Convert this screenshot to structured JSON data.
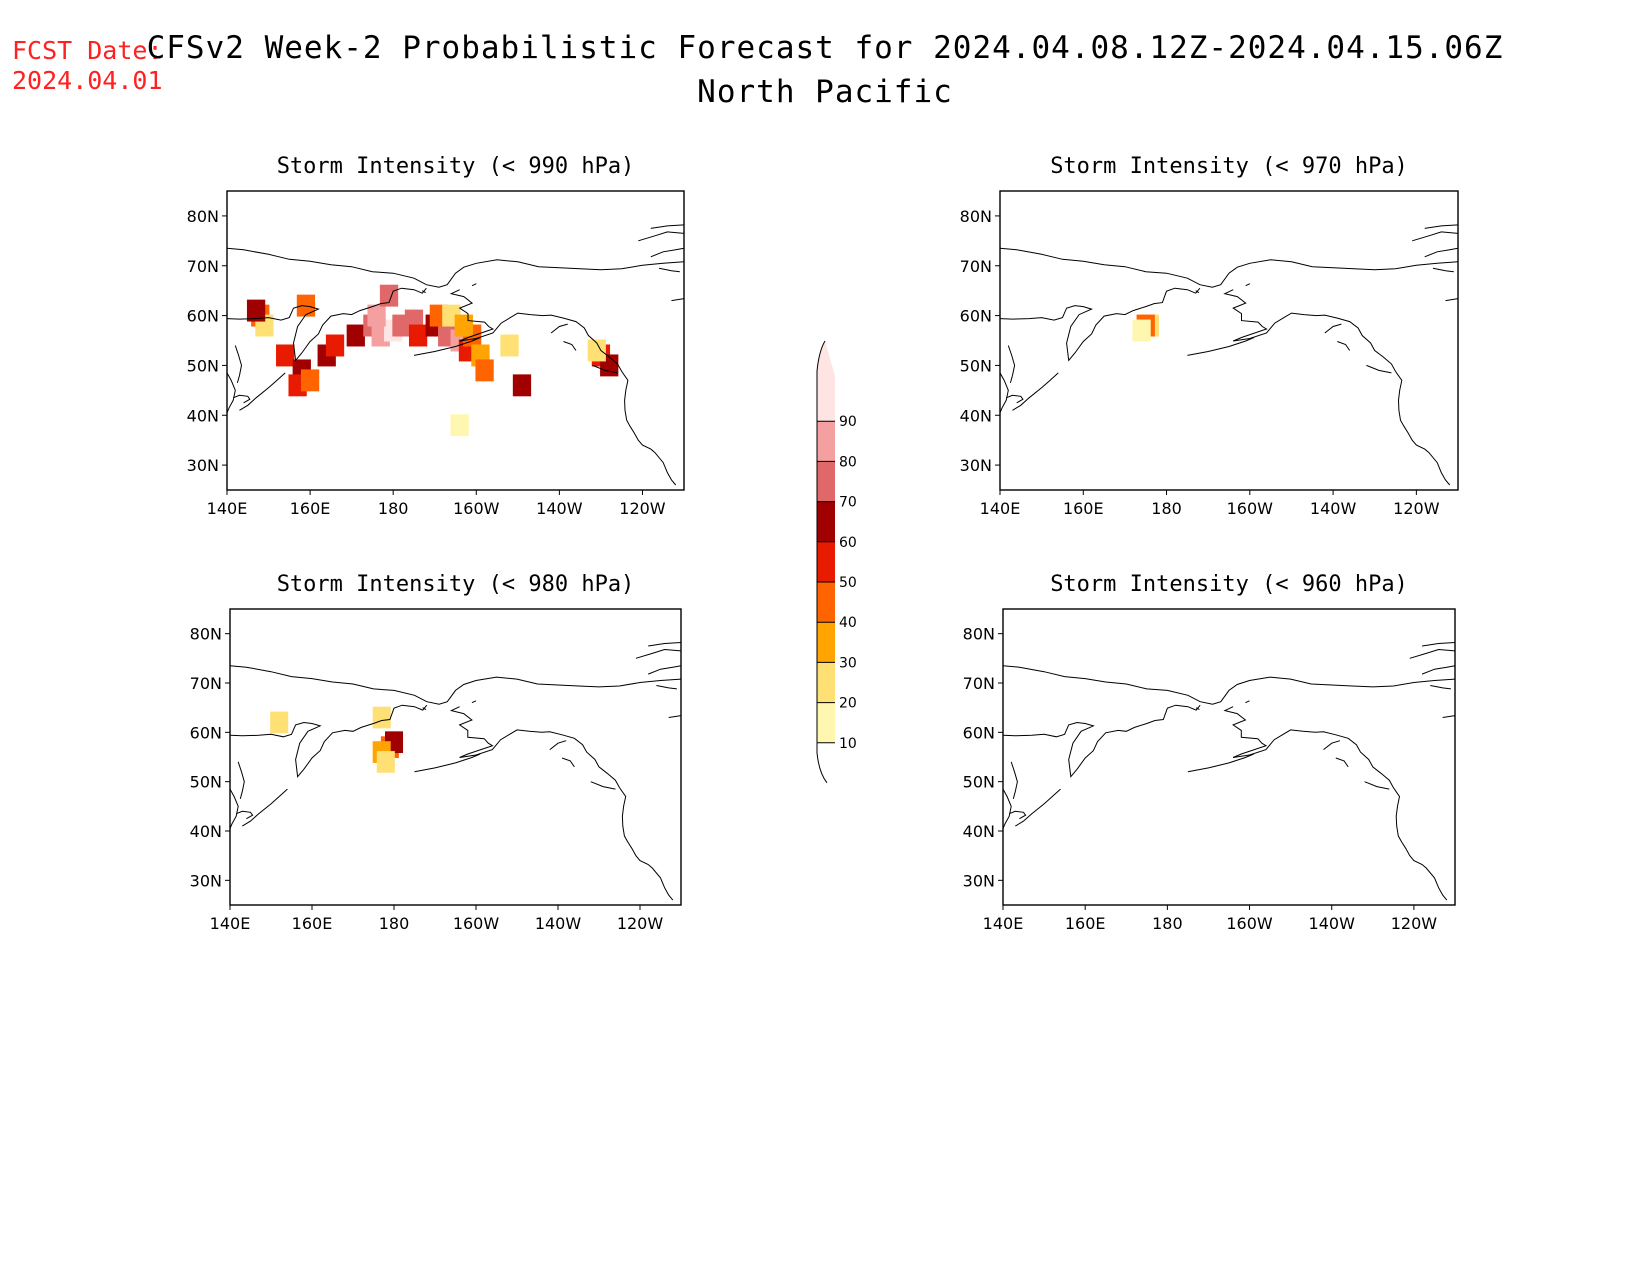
{
  "header": {
    "fcst_label": "FCST Date:",
    "fcst_date": "2024.04.01",
    "title": "CFSv2 Week-2 Probabilistic Forecast for 2024.04.08.12Z-2024.04.15.06Z",
    "subtitle": "North Pacific"
  },
  "colorbar": {
    "levels": [
      10,
      20,
      30,
      40,
      50,
      60,
      70,
      80,
      90
    ],
    "labels": [
      "10",
      "20",
      "30",
      "40",
      "50",
      "60",
      "70",
      "80",
      "90"
    ],
    "colors": [
      "#fff7b0",
      "#ffe074",
      "#ffa400",
      "#ff6400",
      "#e81b00",
      "#a00000",
      "#e06868",
      "#f4a0a0",
      "#ffe4e4"
    ]
  },
  "chart_data": [
    {
      "type": "heatmap",
      "title": "Storm Intensity (< 990 hPa)",
      "x_ticks": [
        "140E",
        "160E",
        "180",
        "160W",
        "140W",
        "120W"
      ],
      "y_ticks": [
        "30N",
        "40N",
        "50N",
        "60N",
        "70N",
        "80N"
      ],
      "xlim": [
        140,
        250
      ],
      "ylim": [
        25,
        85
      ],
      "cells": [
        {
          "lon": 148,
          "lat": 60,
          "p": 40
        },
        {
          "lon": 149,
          "lat": 58,
          "p": 20
        },
        {
          "lon": 147,
          "lat": 61,
          "p": 60
        },
        {
          "lon": 159,
          "lat": 62,
          "p": 40
        },
        {
          "lon": 154,
          "lat": 52,
          "p": 50
        },
        {
          "lon": 158,
          "lat": 49,
          "p": 60
        },
        {
          "lon": 157,
          "lat": 46,
          "p": 50
        },
        {
          "lon": 160,
          "lat": 47,
          "p": 40
        },
        {
          "lon": 164,
          "lat": 52,
          "p": 60
        },
        {
          "lon": 166,
          "lat": 54,
          "p": 50
        },
        {
          "lon": 171,
          "lat": 56,
          "p": 60
        },
        {
          "lon": 175,
          "lat": 58,
          "p": 70
        },
        {
          "lon": 177,
          "lat": 56,
          "p": 80
        },
        {
          "lon": 180,
          "lat": 57,
          "p": 90
        },
        {
          "lon": 182,
          "lat": 58,
          "p": 70
        },
        {
          "lon": 176,
          "lat": 60,
          "p": 80
        },
        {
          "lon": 179,
          "lat": 64,
          "p": 70
        },
        {
          "lon": 185,
          "lat": 59,
          "p": 70
        },
        {
          "lon": 186,
          "lat": 56,
          "p": 50
        },
        {
          "lon": 190,
          "lat": 58,
          "p": 60
        },
        {
          "lon": 193,
          "lat": 56,
          "p": 70
        },
        {
          "lon": 196,
          "lat": 55,
          "p": 80
        },
        {
          "lon": 198,
          "lat": 53,
          "p": 50
        },
        {
          "lon": 199,
          "lat": 56,
          "p": 40
        },
        {
          "lon": 201,
          "lat": 52,
          "p": 30
        },
        {
          "lon": 202,
          "lat": 49,
          "p": 40
        },
        {
          "lon": 191,
          "lat": 60,
          "p": 40
        },
        {
          "lon": 194,
          "lat": 60,
          "p": 20
        },
        {
          "lon": 197,
          "lat": 58,
          "p": 30
        },
        {
          "lon": 211,
          "lat": 46,
          "p": 60
        },
        {
          "lon": 230,
          "lat": 52,
          "p": 50
        },
        {
          "lon": 232,
          "lat": 50,
          "p": 60
        },
        {
          "lon": 229,
          "lat": 53,
          "p": 20
        },
        {
          "lon": 208,
          "lat": 54,
          "p": 20
        },
        {
          "lon": 196,
          "lat": 38,
          "p": 10
        }
      ]
    },
    {
      "type": "heatmap",
      "title": "Storm Intensity (< 970 hPa)",
      "x_ticks": [
        "140E",
        "160E",
        "180",
        "160W",
        "140W",
        "120W"
      ],
      "y_ticks": [
        "30N",
        "40N",
        "50N",
        "60N",
        "70N",
        "80N"
      ],
      "xlim": [
        140,
        250
      ],
      "ylim": [
        25,
        85
      ],
      "cells": [
        {
          "lon": 176,
          "lat": 58,
          "p": 20
        },
        {
          "lon": 175,
          "lat": 58,
          "p": 40
        },
        {
          "lon": 174,
          "lat": 57,
          "p": 10
        }
      ]
    },
    {
      "type": "heatmap",
      "title": "Storm Intensity (< 980 hPa)",
      "x_ticks": [
        "140E",
        "160E",
        "180",
        "160W",
        "140W",
        "120W"
      ],
      "y_ticks": [
        "30N",
        "40N",
        "50N",
        "60N",
        "70N",
        "80N"
      ],
      "xlim": [
        140,
        250
      ],
      "ylim": [
        25,
        85
      ],
      "cells": [
        {
          "lon": 152,
          "lat": 62,
          "p": 20
        },
        {
          "lon": 179,
          "lat": 57,
          "p": 40
        },
        {
          "lon": 180,
          "lat": 58,
          "p": 60
        },
        {
          "lon": 177,
          "lat": 56,
          "p": 30
        },
        {
          "lon": 178,
          "lat": 54,
          "p": 20
        },
        {
          "lon": 177,
          "lat": 63,
          "p": 20
        }
      ]
    },
    {
      "type": "heatmap",
      "title": "Storm Intensity (< 960 hPa)",
      "x_ticks": [
        "140E",
        "160E",
        "180",
        "160W",
        "140W",
        "120W"
      ],
      "y_ticks": [
        "30N",
        "40N",
        "50N",
        "60N",
        "70N",
        "80N"
      ],
      "xlim": [
        140,
        250
      ],
      "ylim": [
        25,
        85
      ],
      "cells": []
    }
  ]
}
